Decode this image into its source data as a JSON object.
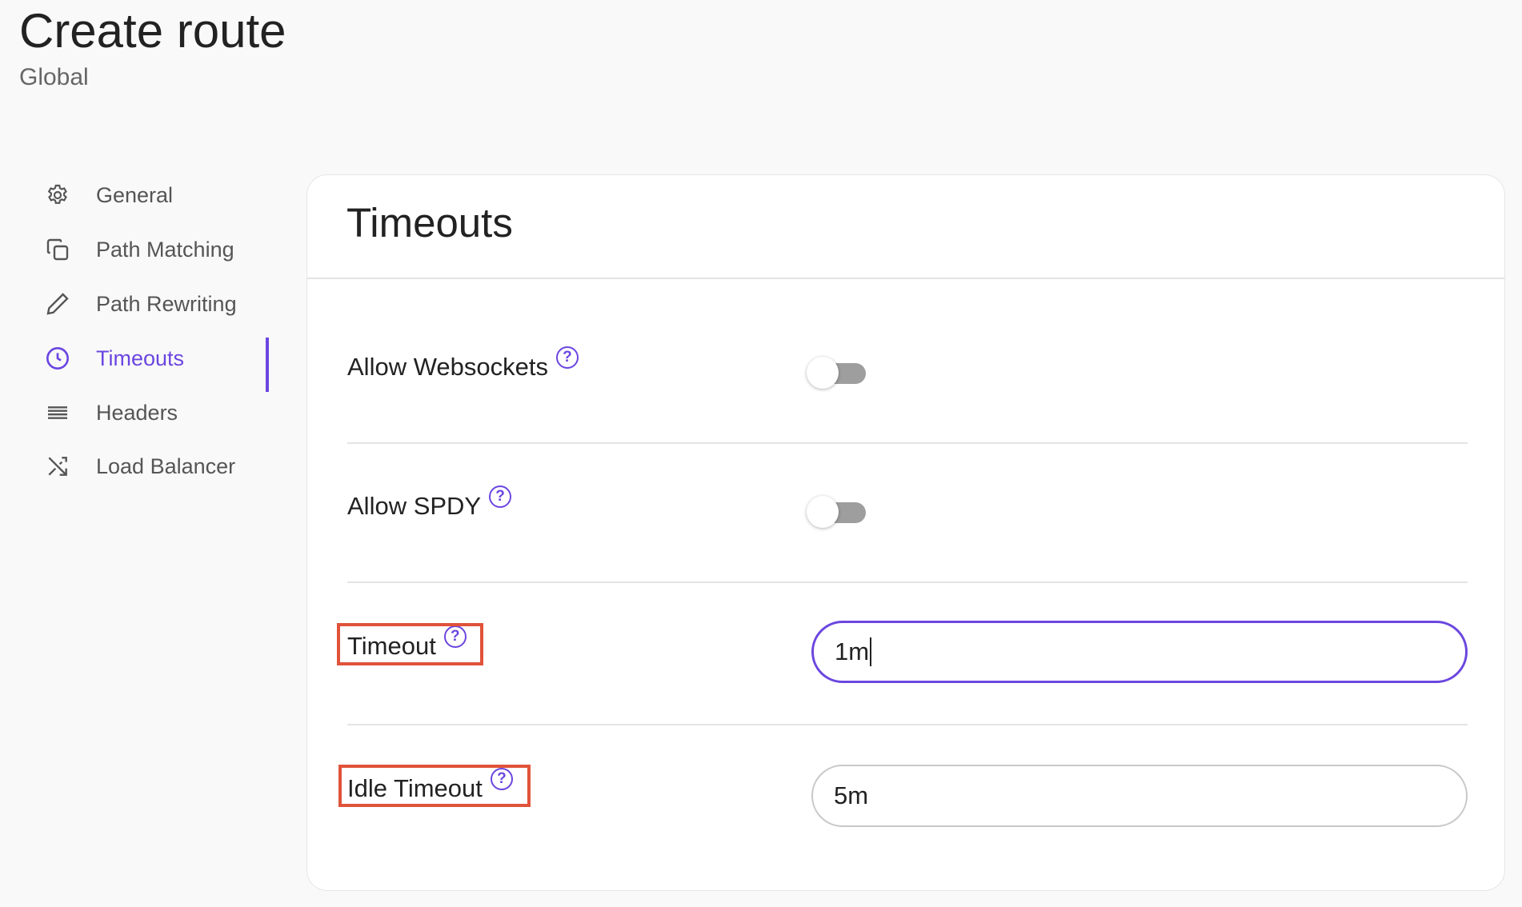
{
  "header": {
    "title": "Create route",
    "subtitle": "Global"
  },
  "sidebar": {
    "items": [
      {
        "label": "General",
        "icon": "gear-icon"
      },
      {
        "label": "Path Matching",
        "icon": "copy-icon"
      },
      {
        "label": "Path Rewriting",
        "icon": "pencil-icon"
      },
      {
        "label": "Timeouts",
        "icon": "clock-icon",
        "active": true
      },
      {
        "label": "Headers",
        "icon": "list-icon"
      },
      {
        "label": "Load Balancer",
        "icon": "shuffle-icon"
      }
    ]
  },
  "card": {
    "title": "Timeouts",
    "fields": {
      "websockets": {
        "label": "Allow Websockets",
        "enabled": false
      },
      "spdy": {
        "label": "Allow SPDY",
        "enabled": false
      },
      "timeout": {
        "label": "Timeout",
        "value": "1m"
      },
      "idle_timeout": {
        "label": "Idle Timeout",
        "value": "5m"
      }
    },
    "help_glyph": "?"
  },
  "colors": {
    "accent": "#6b46e0",
    "highlight": "#e0533a",
    "toggle_off": "#9e9e9e"
  }
}
